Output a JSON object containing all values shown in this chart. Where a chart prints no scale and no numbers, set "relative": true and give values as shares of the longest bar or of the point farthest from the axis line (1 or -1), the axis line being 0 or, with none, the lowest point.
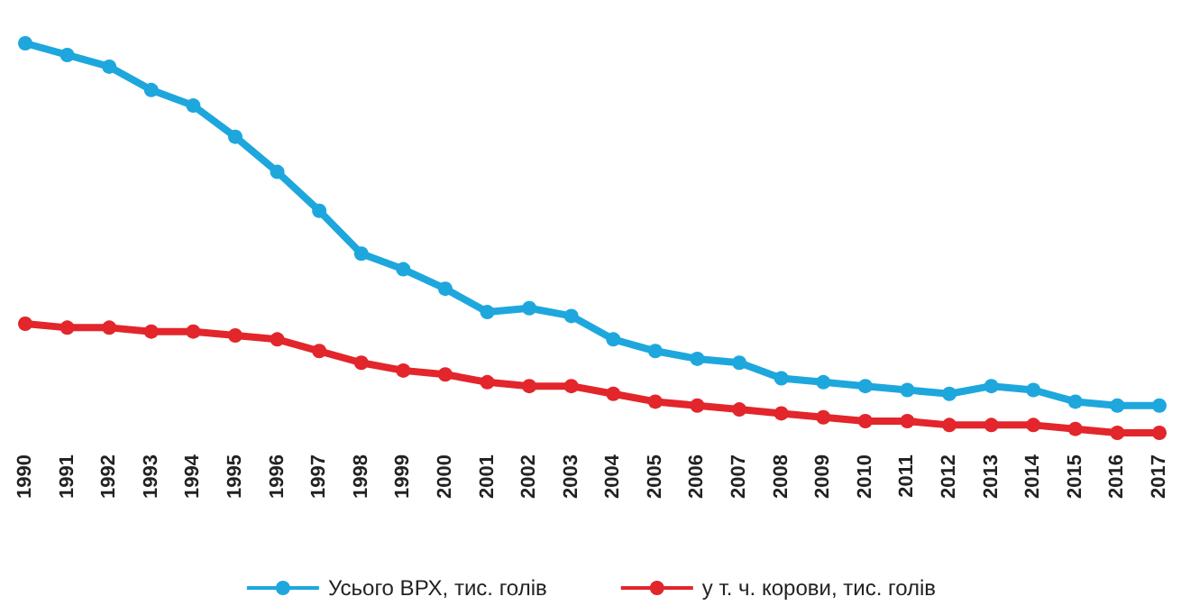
{
  "chart_data": {
    "type": "line",
    "relative": true,
    "categories": [
      "1990",
      "1991",
      "1992",
      "1993",
      "1994",
      "1995",
      "1996",
      "1997",
      "1998",
      "1999",
      "2000",
      "2001",
      "2002",
      "2003",
      "2004",
      "2005",
      "2006",
      "2007",
      "2008",
      "2009",
      "2010",
      "2011",
      "2012",
      "2013",
      "2014",
      "2015",
      "2016",
      "2017"
    ],
    "series": [
      {
        "name": "Усього ВРХ, тис. голів",
        "color": "#1ea7dd",
        "values": [
          1.0,
          0.97,
          0.94,
          0.88,
          0.84,
          0.76,
          0.67,
          0.57,
          0.46,
          0.42,
          0.37,
          0.31,
          0.32,
          0.3,
          0.24,
          0.21,
          0.19,
          0.18,
          0.14,
          0.13,
          0.12,
          0.11,
          0.1,
          0.12,
          0.11,
          0.08,
          0.07,
          0.07
        ]
      },
      {
        "name": "у т. ч. корови, тис. голів",
        "color": "#e2262b",
        "values": [
          0.28,
          0.27,
          0.27,
          0.26,
          0.26,
          0.25,
          0.24,
          0.21,
          0.18,
          0.16,
          0.15,
          0.13,
          0.12,
          0.12,
          0.1,
          0.08,
          0.07,
          0.06,
          0.05,
          0.04,
          0.03,
          0.03,
          0.02,
          0.02,
          0.02,
          0.01,
          0.0,
          0.0
        ]
      }
    ],
    "legend": "bottom",
    "marker": "circle",
    "line_style": "solid",
    "grid": false
  }
}
